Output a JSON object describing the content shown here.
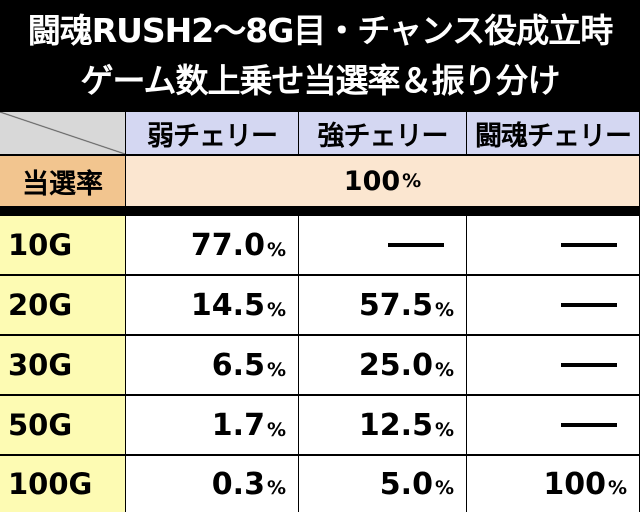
{
  "title": {
    "line1": "闘魂RUSH2～8G目・チャンス役成立時",
    "line2": "ゲーム数上乗せ当選率＆振り分け"
  },
  "table": {
    "headers": [
      "弱チェリー",
      "強チェリー",
      "闘魂チェリー"
    ],
    "rate_label": "当選率",
    "rate_value": "100",
    "percent_sign": "%",
    "rows": [
      {
        "label": "10G",
        "weak": "77.0",
        "strong": "—",
        "toukon": "—"
      },
      {
        "label": "20G",
        "weak": "14.5",
        "strong": "57.5",
        "toukon": "—"
      },
      {
        "label": "30G",
        "weak": "6.5",
        "strong": "25.0",
        "toukon": "—"
      },
      {
        "label": "50G",
        "weak": "1.7",
        "strong": "12.5",
        "toukon": "—"
      },
      {
        "label": "100G",
        "weak": "0.3",
        "strong": "5.0",
        "toukon": "100"
      }
    ]
  }
}
